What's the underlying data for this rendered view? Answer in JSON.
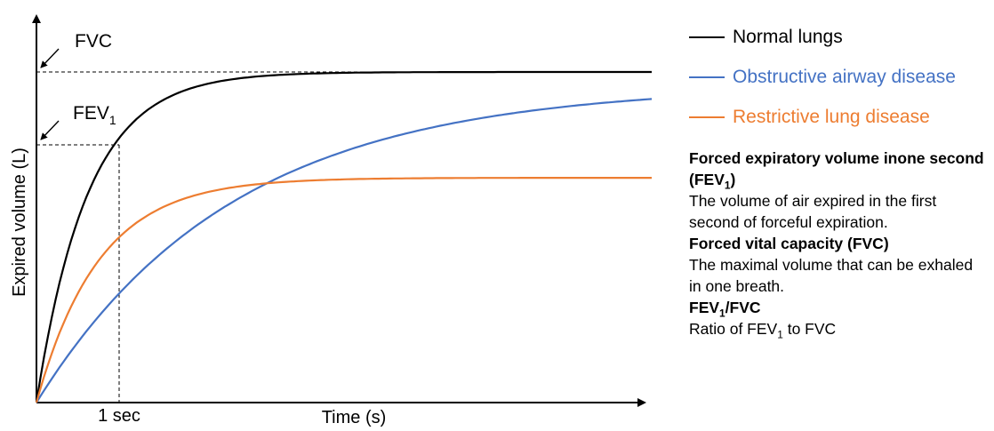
{
  "chart_data": {
    "type": "line",
    "xlabel": "Time (s)",
    "ylabel": "Expired volume (L)",
    "x_tick_label": "1 sec",
    "series": [
      {
        "name": "Normal lungs",
        "color": "#000000",
        "final_fraction_of_fvc": 1.0,
        "fev1_fraction_of_fvc": 0.8
      },
      {
        "name": "Obstructive airway disease",
        "color": "#4472c4",
        "final_fraction_of_fvc": 0.96,
        "fev1_fraction_of_fvc": 0.33
      },
      {
        "name": "Restrictive lung disease",
        "color": "#ed7d31",
        "final_fraction_of_fvc": 0.68,
        "fev1_fraction_of_fvc": 0.5
      }
    ]
  },
  "annotations": {
    "fvc": {
      "label": "FVC"
    },
    "fev1": {
      "label": "FEV",
      "sub": "1"
    }
  },
  "definitions": [
    {
      "term_parts": [
        [
          "Forced expiratory volume in"
        ],
        [
          "one second (FEV"
        ],
        [
          "1",
          "sub"
        ],
        [
          ")"
        ]
      ],
      "text_parts": [
        [
          "The volume of air expired in the first second of forceful expiration."
        ]
      ]
    },
    {
      "term_parts": [
        [
          "Forced vital capacity (FVC)"
        ]
      ],
      "text_parts": [
        [
          "The maximal volume that can be exhaled in one breath."
        ]
      ]
    },
    {
      "term_parts": [
        [
          "FEV"
        ],
        [
          "1",
          "sub"
        ],
        [
          "/FVC"
        ]
      ],
      "text_parts": [
        [
          "Ratio of FEV"
        ],
        [
          "1",
          "sub"
        ],
        [
          " to FVC"
        ]
      ]
    }
  ]
}
